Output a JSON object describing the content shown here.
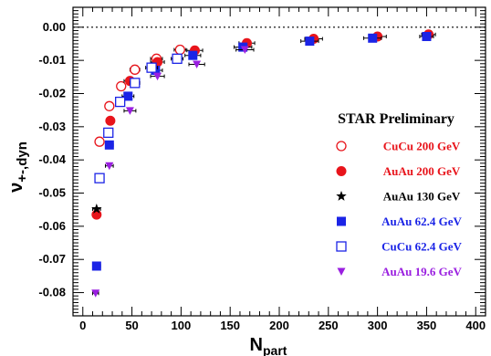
{
  "chart_data": {
    "type": "scatter",
    "xlim": [
      -10,
      410
    ],
    "ylim": [
      -0.087,
      0.006
    ],
    "xticks": [
      0,
      50,
      100,
      150,
      200,
      250,
      300,
      350,
      400
    ],
    "yticks": [
      0.0,
      -0.01,
      -0.02,
      -0.03,
      -0.04,
      -0.05,
      -0.06,
      -0.07,
      -0.08
    ],
    "ytick_labels": [
      "0.00",
      "-0.01",
      "-0.02",
      "-0.03",
      "-0.04",
      "-0.05",
      "-0.06",
      "-0.07",
      "-0.08"
    ],
    "reference_line_y": 0,
    "xlabel": {
      "main": "N",
      "sub": "part"
    },
    "ylabel": {
      "main": "ν",
      "sub": "+-,dyn"
    },
    "legend_title": "STAR Preliminary",
    "legend_position": "right",
    "series": [
      {
        "name": "CuCu 200 GeV",
        "color": "#e8141b",
        "marker": "open-circle",
        "points": [
          {
            "x": 17,
            "y": -0.0345,
            "xerr": 2
          },
          {
            "x": 27,
            "y": -0.0238,
            "xerr": 3
          },
          {
            "x": 39,
            "y": -0.0178,
            "xerr": 4
          },
          {
            "x": 53,
            "y": -0.0128,
            "xerr": 5
          },
          {
            "x": 75,
            "y": -0.0095,
            "xerr": 6
          },
          {
            "x": 99,
            "y": -0.0068,
            "xerr": 6
          }
        ]
      },
      {
        "name": "AuAu 200 GeV",
        "color": "#e8141b",
        "marker": "filled-circle",
        "points": [
          {
            "x": 14,
            "y": -0.0565,
            "xerr": 4
          },
          {
            "x": 28,
            "y": -0.0282,
            "xerr": 4
          },
          {
            "x": 48,
            "y": -0.0162,
            "xerr": 6
          },
          {
            "x": 76,
            "y": -0.0105,
            "xerr": 7
          },
          {
            "x": 114,
            "y": -0.007,
            "xerr": 8
          },
          {
            "x": 167,
            "y": -0.0048,
            "xerr": 8
          },
          {
            "x": 235,
            "y": -0.0035,
            "xerr": 9
          },
          {
            "x": 300,
            "y": -0.0028,
            "xerr": 9
          },
          {
            "x": 352,
            "y": -0.0022,
            "xerr": 7
          }
        ]
      },
      {
        "name": "AuAu 130 GeV",
        "color": "#000000",
        "marker": "star",
        "points": [
          {
            "x": 14,
            "y": -0.0548,
            "xerr": 4
          }
        ]
      },
      {
        "name": "AuAu 62.4 GeV",
        "color": "#1b24e6",
        "marker": "filled-square",
        "points": [
          {
            "x": 14,
            "y": -0.072,
            "xerr": 4
          },
          {
            "x": 27,
            "y": -0.0355,
            "xerr": 4
          },
          {
            "x": 46,
            "y": -0.0208,
            "xerr": 6
          },
          {
            "x": 74,
            "y": -0.013,
            "xerr": 7
          },
          {
            "x": 112,
            "y": -0.0085,
            "xerr": 8
          },
          {
            "x": 163,
            "y": -0.006,
            "xerr": 9
          },
          {
            "x": 231,
            "y": -0.0042,
            "xerr": 9
          },
          {
            "x": 295,
            "y": -0.0033,
            "xerr": 9
          },
          {
            "x": 350,
            "y": -0.0028,
            "xerr": 7
          }
        ]
      },
      {
        "name": "CuCu 62.4 GeV",
        "color": "#1b24e6",
        "marker": "open-square",
        "points": [
          {
            "x": 17,
            "y": -0.0455,
            "xerr": 2
          },
          {
            "x": 26,
            "y": -0.0318,
            "xerr": 3
          },
          {
            "x": 38,
            "y": -0.0225,
            "xerr": 4
          },
          {
            "x": 53,
            "y": -0.0168,
            "xerr": 5
          },
          {
            "x": 70,
            "y": -0.0122,
            "xerr": 6
          },
          {
            "x": 96,
            "y": -0.0095,
            "xerr": 6
          }
        ]
      },
      {
        "name": "AuAu 19.6 GeV",
        "color": "#9a1fe0",
        "marker": "triangle-down",
        "points": [
          {
            "x": 13,
            "y": -0.0802,
            "xerr": 3
          },
          {
            "x": 27,
            "y": -0.0418,
            "xerr": 4
          },
          {
            "x": 48,
            "y": -0.0252,
            "xerr": 6
          },
          {
            "x": 76,
            "y": -0.0148,
            "xerr": 7
          },
          {
            "x": 116,
            "y": -0.0112,
            "xerr": 8
          },
          {
            "x": 165,
            "y": -0.0068,
            "xerr": 9
          }
        ]
      }
    ]
  }
}
